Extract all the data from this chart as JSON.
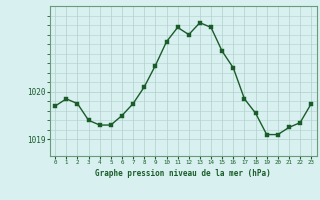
{
  "x": [
    0,
    1,
    2,
    3,
    4,
    5,
    6,
    7,
    8,
    9,
    10,
    11,
    12,
    13,
    14,
    15,
    16,
    17,
    18,
    19,
    20,
    21,
    22,
    23
  ],
  "y": [
    1019.7,
    1019.85,
    1019.75,
    1019.4,
    1019.3,
    1019.3,
    1019.5,
    1019.75,
    1020.1,
    1020.55,
    1021.05,
    1021.35,
    1021.2,
    1021.45,
    1021.35,
    1020.85,
    1020.5,
    1019.85,
    1019.55,
    1019.1,
    1019.1,
    1019.25,
    1019.35,
    1019.75
  ],
  "line_color": "#1a5c2a",
  "marker_color": "#1a5c2a",
  "bg_color": "#d8f0ef",
  "grid_color": "#b0d0cc",
  "border_color": "#6a9a7a",
  "xlabel": "Graphe pression niveau de la mer (hPa)",
  "xlabel_color": "#1a5c2a",
  "tick_color": "#1a5c2a",
  "ytick_labels": [
    "1019",
    "1020"
  ],
  "ytick_values": [
    1019.0,
    1020.0
  ],
  "ylim": [
    1018.65,
    1021.8
  ],
  "xlim": [
    -0.5,
    23.5
  ]
}
